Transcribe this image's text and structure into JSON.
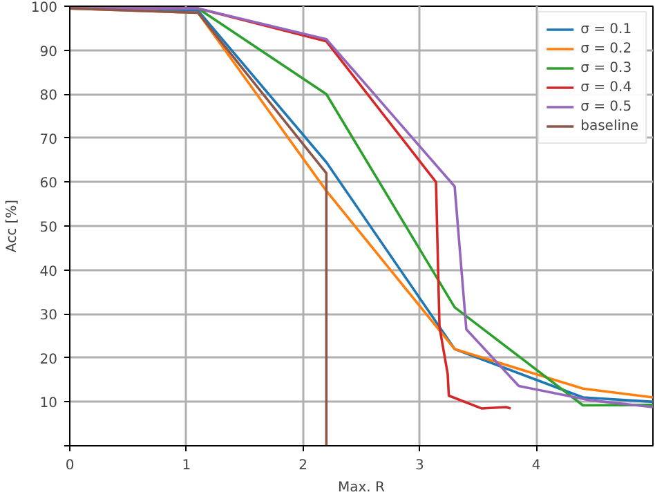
{
  "chart_data": {
    "type": "line",
    "xlabel": "Max. R",
    "ylabel": "Acc [%]",
    "xlim": [
      0,
      5
    ],
    "ylim": [
      0,
      100
    ],
    "xticks": [
      0,
      1,
      2,
      3,
      4
    ],
    "yticks": [
      {
        "value": 0,
        "label": null
      },
      10,
      20,
      30,
      40,
      50,
      60,
      70,
      80,
      90,
      100
    ],
    "grid": true,
    "legend": "top right",
    "line_style": "solid",
    "series": [
      {
        "name": "σ = 0.1",
        "color": "#1f77b4",
        "x": [
          0,
          1.1,
          2.2,
          3.3,
          4.4,
          5
        ],
        "values": [
          99.5,
          99,
          64.5,
          22,
          11,
          10
        ]
      },
      {
        "name": "σ = 0.2",
        "color": "#ff7f0e",
        "x": [
          0,
          1.1,
          2.2,
          3.3,
          4.4,
          5
        ],
        "values": [
          99.5,
          98.5,
          58,
          22,
          13,
          11
        ]
      },
      {
        "name": "σ = 0.3",
        "color": "#2ca02c",
        "x": [
          0,
          1.1,
          2.2,
          3.3,
          4.4,
          5
        ],
        "values": [
          99.5,
          99.5,
          80,
          31.5,
          9.2,
          9.3
        ]
      },
      {
        "name": "σ = 0.4",
        "color": "#d62728",
        "x": [
          0,
          1.1,
          2.2,
          3.14,
          3.17,
          3.24,
          3.25,
          3.53,
          3.74,
          3.78
        ],
        "values": [
          99.5,
          99.5,
          92,
          60,
          27,
          16.4,
          11.4,
          8.5,
          8.8,
          8.5
        ]
      },
      {
        "name": "σ = 0.5",
        "color": "#9467bd",
        "x": [
          0,
          1.1,
          2.2,
          3.3,
          3.4,
          3.85,
          4.45,
          5
        ],
        "values": [
          99.5,
          99.5,
          92.5,
          59,
          26.5,
          13.6,
          10.4,
          8.8
        ]
      },
      {
        "name": "baseline",
        "color": "#8c564b",
        "x": [
          0,
          1.1,
          2.2,
          2.2
        ],
        "values": [
          99.5,
          98.5,
          62,
          0
        ]
      }
    ]
  }
}
